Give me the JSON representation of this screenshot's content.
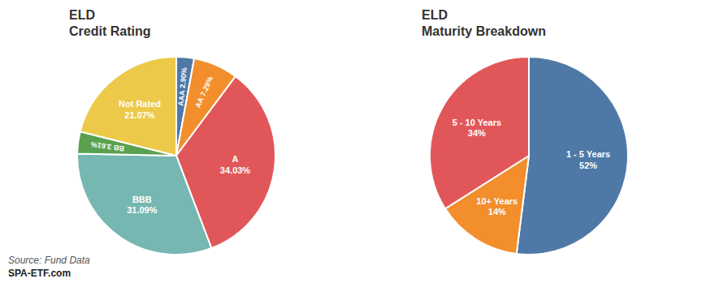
{
  "chart_data": [
    {
      "type": "pie",
      "title": "ELD",
      "subtitle": "Credit Rating",
      "categories": [
        "AAA",
        "AA",
        "A",
        "BBB",
        "BB",
        "Not Rated"
      ],
      "values": [
        2.9,
        7.29,
        34.03,
        31.09,
        3.61,
        21.07
      ],
      "value_labels": [
        "2.90%",
        "7.29%",
        "34.03%",
        "31.09%",
        "3.61%",
        "21.07%"
      ],
      "data_labels": true,
      "annotations": [
        "Source: Fund Data",
        "SPA-ETF.com"
      ]
    },
    {
      "type": "pie",
      "title": "ELD",
      "subtitle": "Maturity Breakdown",
      "categories": [
        "1 - 5 Years",
        "10+ Years",
        "5 - 10 Years"
      ],
      "values": [
        52,
        14,
        34
      ],
      "value_labels": [
        "52%",
        "14%",
        "34%"
      ],
      "data_labels": true
    }
  ]
}
